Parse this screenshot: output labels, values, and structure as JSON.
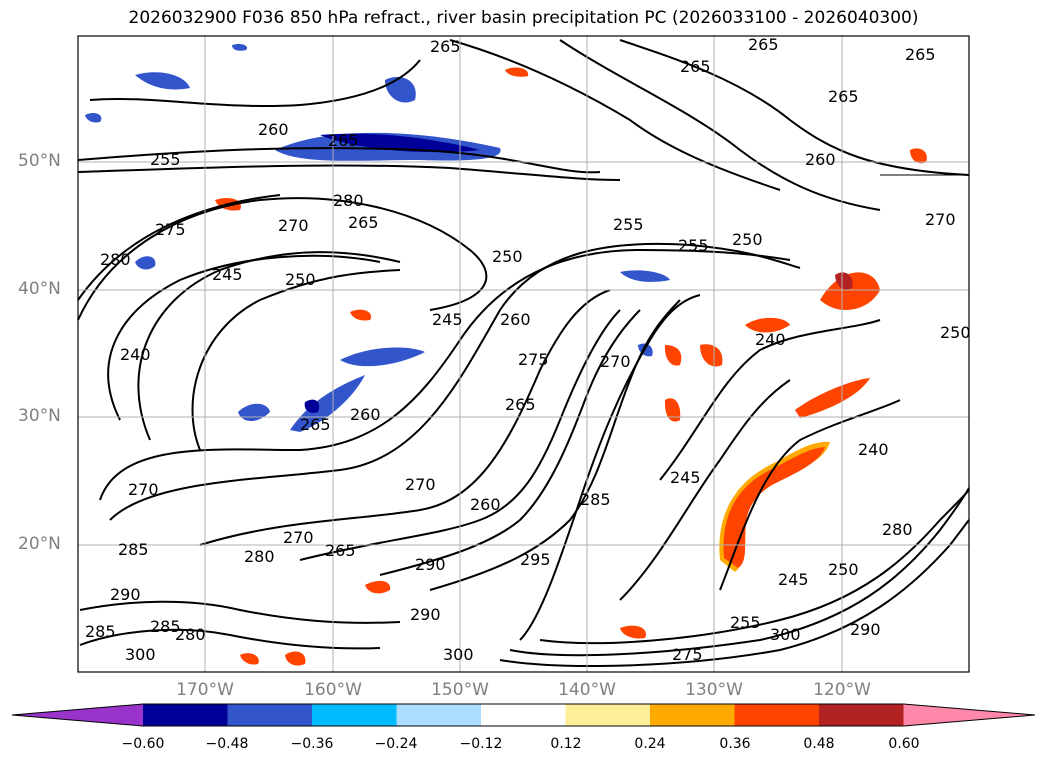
{
  "title": "2026032900 F036 850 hPa refract., river basin precipitation PC (2026033100 - 2026040300)",
  "lat_labels": [
    "50°N",
    "40°N",
    "30°N",
    "20°N"
  ],
  "lon_labels": [
    "170°W",
    "160°W",
    "150°W",
    "140°W",
    "130°W",
    "120°W"
  ],
  "colorbar": {
    "ticks": [
      "−0.60",
      "−0.48",
      "−0.36",
      "−0.24",
      "−0.12",
      "0.12",
      "0.24",
      "0.36",
      "0.48",
      "0.60"
    ],
    "colors": [
      "#9933cc",
      "#000099",
      "#3355cc",
      "#00bbff",
      "#aaddff",
      "#ffffff",
      "#ffee99",
      "#ffaa00",
      "#ff4400",
      "#b22222",
      "#ff88aa"
    ]
  },
  "contour_labels": [
    {
      "t": "265"
    },
    {
      "t": "265"
    },
    {
      "t": "265"
    },
    {
      "t": "265"
    },
    {
      "t": "265"
    },
    {
      "t": "265"
    },
    {
      "t": "260"
    },
    {
      "t": "260"
    },
    {
      "t": "255"
    },
    {
      "t": "280"
    },
    {
      "t": "275"
    },
    {
      "t": "270"
    },
    {
      "t": "265"
    },
    {
      "t": "255"
    },
    {
      "t": "255"
    },
    {
      "t": "250"
    },
    {
      "t": "280"
    },
    {
      "t": "245"
    },
    {
      "t": "250"
    },
    {
      "t": "250"
    },
    {
      "t": "245"
    },
    {
      "t": "260"
    },
    {
      "t": "240"
    },
    {
      "t": "275"
    },
    {
      "t": "270"
    },
    {
      "t": "240"
    },
    {
      "t": "265"
    },
    {
      "t": "260"
    },
    {
      "t": "265"
    },
    {
      "t": "245"
    },
    {
      "t": "270"
    },
    {
      "t": "260"
    },
    {
      "t": "285"
    },
    {
      "t": "240"
    },
    {
      "t": "270"
    },
    {
      "t": "270"
    },
    {
      "t": "285"
    },
    {
      "t": "280"
    },
    {
      "t": "265"
    },
    {
      "t": "290"
    },
    {
      "t": "295"
    },
    {
      "t": "245"
    },
    {
      "t": "250"
    },
    {
      "t": "280"
    },
    {
      "t": "285"
    },
    {
      "t": "290"
    },
    {
      "t": "285"
    },
    {
      "t": "280"
    },
    {
      "t": "300"
    },
    {
      "t": "290"
    },
    {
      "t": "300"
    },
    {
      "t": "275"
    },
    {
      "t": "255"
    },
    {
      "t": "300"
    },
    {
      "t": "290"
    },
    {
      "t": "250"
    },
    {
      "t": "270"
    }
  ]
}
